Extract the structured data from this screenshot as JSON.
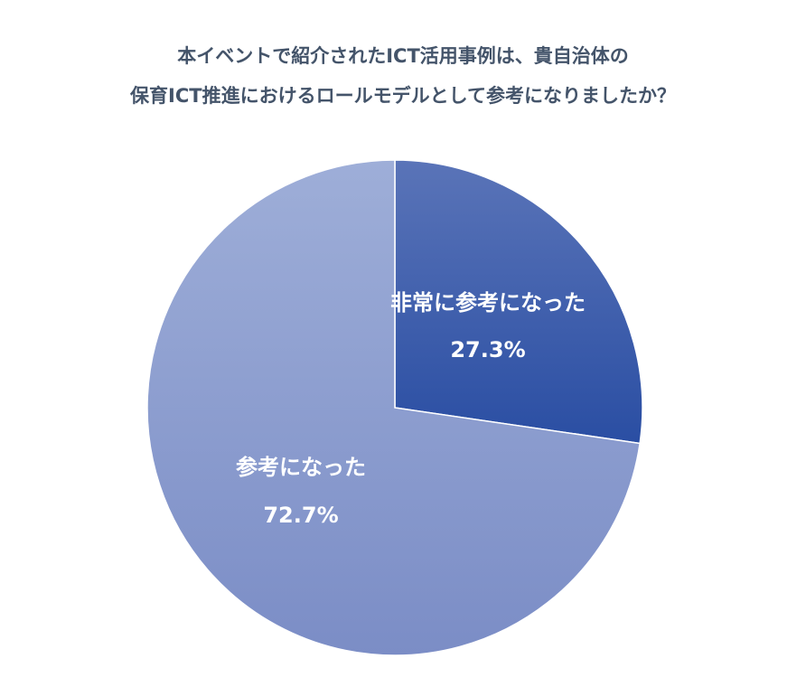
{
  "chart_data": {
    "type": "pie",
    "title_lines": [
      "本イベントで紹介されたICT活用事例は、貴自治体の",
      "保育ICT推進におけるロールモデルとして参考になりましたか？"
    ],
    "slices": [
      {
        "label": "非常に参考になった",
        "value": 27.3,
        "value_label": "27.3%",
        "color_top": "#5a74b8",
        "color_bottom": "#2a4ea3"
      },
      {
        "label": "参考になった",
        "value": 72.7,
        "value_label": "72.7%",
        "color_top": "#9eaed8",
        "color_bottom": "#7b8dc6"
      }
    ],
    "start_angle": "12 o'clock",
    "direction": "clockwise",
    "legend": "none"
  }
}
